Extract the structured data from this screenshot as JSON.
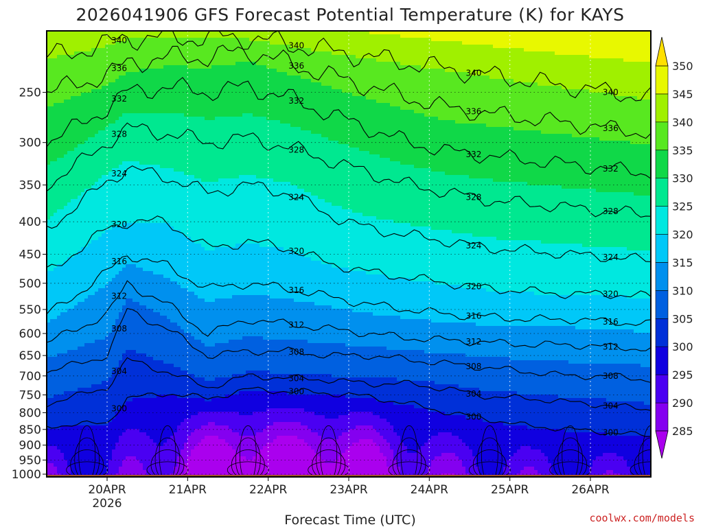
{
  "chart_data": {
    "type": "heatmap",
    "title": "2026041906 GFS Forecast Potential Temperature (K) for KAYS",
    "xlabel": "Forecast Time (UTC)",
    "ylabel": "",
    "x_ticks": [
      "20APR",
      "21APR",
      "22APR",
      "23APR",
      "24APR",
      "25APR",
      "26APR"
    ],
    "x_tick_sublabel": "2026",
    "x_range": [
      "2026-04-19 06Z",
      "2026-04-26 18Z"
    ],
    "y_ticks": [
      250,
      300,
      350,
      400,
      450,
      500,
      550,
      600,
      650,
      700,
      750,
      800,
      850,
      900,
      950,
      1000
    ],
    "y_range": [
      1010,
      200
    ],
    "grid": true,
    "colorbar": {
      "levels": [
        285,
        290,
        295,
        300,
        305,
        310,
        315,
        320,
        325,
        330,
        335,
        340,
        345,
        350
      ],
      "colors": [
        "#aa00ee",
        "#8400f0",
        "#4a00f2",
        "#1000e0",
        "#0030d8",
        "#0060e0",
        "#0090ee",
        "#00c8f8",
        "#00e8e0",
        "#00e890",
        "#10d848",
        "#58e820",
        "#a0f000",
        "#e8f800",
        "#ffe000"
      ],
      "placement": "right"
    },
    "contour_interval": 4,
    "contour_labels": [
      300,
      304,
      308,
      312,
      316,
      320,
      324,
      328,
      332,
      336,
      340
    ],
    "profile_days": [
      0,
      0.75,
      1.0,
      1.5,
      2.0,
      2.5,
      3.0,
      3.5,
      4.0,
      4.5,
      5.0,
      5.5,
      6.0,
      6.5,
      7.0,
      7.5
    ],
    "isentrope_pressure": {
      "300": [
        840,
        830,
        760,
        745,
        760,
        735,
        740,
        745,
        755,
        775,
        800,
        820,
        840,
        850,
        860,
        870
      ],
      "304": [
        775,
        730,
        660,
        690,
        730,
        700,
        705,
        710,
        720,
        720,
        735,
        755,
        760,
        770,
        780,
        790
      ],
      "308": [
        690,
        650,
        550,
        590,
        650,
        640,
        640,
        650,
        650,
        660,
        670,
        680,
        690,
        700,
        700,
        710
      ],
      "312": [
        620,
        560,
        500,
        540,
        600,
        570,
        580,
        590,
        600,
        610,
        615,
        620,
        625,
        625,
        630,
        635
      ],
      "316": [
        560,
        480,
        450,
        470,
        510,
        500,
        510,
        525,
        540,
        550,
        560,
        565,
        570,
        570,
        575,
        580
      ],
      "320": [
        480,
        410,
        400,
        400,
        440,
        430,
        440,
        465,
        480,
        490,
        500,
        510,
        515,
        520,
        520,
        525
      ],
      "324": [
        410,
        345,
        330,
        340,
        360,
        350,
        360,
        390,
        410,
        420,
        430,
        440,
        445,
        450,
        455,
        460
      ],
      "328": [
        350,
        300,
        285,
        290,
        300,
        295,
        305,
        320,
        335,
        350,
        360,
        370,
        375,
        380,
        385,
        390
      ],
      "332": [
        300,
        265,
        250,
        245,
        250,
        245,
        255,
        270,
        285,
        300,
        310,
        315,
        320,
        325,
        330,
        335
      ],
      "336": [
        250,
        235,
        225,
        220,
        220,
        215,
        225,
        235,
        245,
        255,
        265,
        270,
        275,
        280,
        285,
        290
      ],
      "340": [
        220,
        210,
        205,
        205,
        205,
        205,
        210,
        215,
        220,
        225,
        230,
        235,
        240,
        245,
        250,
        255
      ]
    },
    "annotations": []
  },
  "credit": "coolwx.com/models"
}
